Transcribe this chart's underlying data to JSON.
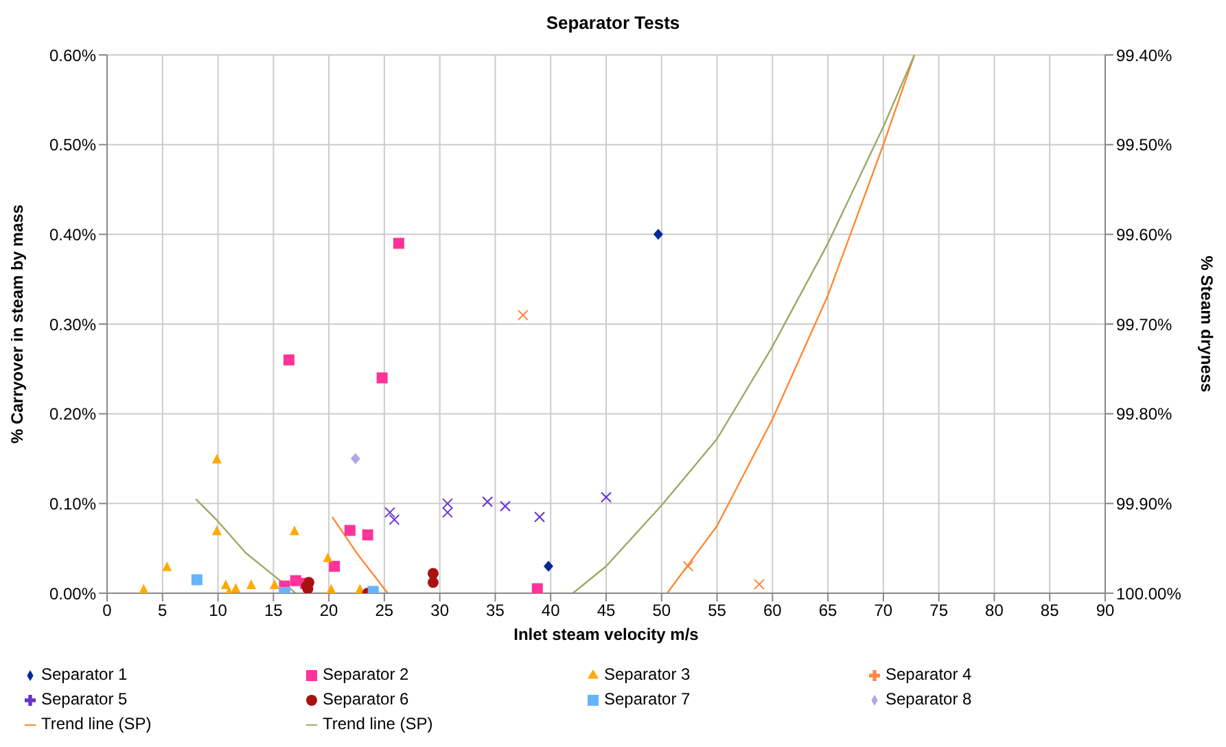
{
  "chart_data": {
    "type": "scatter",
    "title": "Separator Tests",
    "xlabel": "Inlet steam velocity m/s",
    "ylabel": "% Carryover in steam by mass",
    "y2label": "% Steam dryness",
    "xlim": [
      0,
      90
    ],
    "xticks": [
      0,
      5,
      10,
      15,
      20,
      25,
      30,
      35,
      40,
      45,
      50,
      55,
      60,
      65,
      70,
      75,
      80,
      85,
      90
    ],
    "ylim": [
      0,
      0.6
    ],
    "yticks": [
      {
        "value": 0,
        "label": "0.00%"
      },
      {
        "value": 0.1,
        "label": "0.10%"
      },
      {
        "value": 0.2,
        "label": "0.20%"
      },
      {
        "value": 0.3,
        "label": "0.30%"
      },
      {
        "value": 0.4,
        "label": "0.40%"
      },
      {
        "value": 0.5,
        "label": "0.50%"
      },
      {
        "value": 0.6,
        "label": "0.60%"
      }
    ],
    "y2lim": [
      100,
      99.4
    ],
    "y2ticks": [
      {
        "value": 100,
        "label": "100.00%"
      },
      {
        "value": 99.9,
        "label": "99.90%"
      },
      {
        "value": 99.8,
        "label": "99.80%"
      },
      {
        "value": 99.7,
        "label": "99.70%"
      },
      {
        "value": 99.6,
        "label": "99.60%"
      },
      {
        "value": 99.5,
        "label": "99.50%"
      },
      {
        "value": 99.4,
        "label": "99.40%"
      }
    ],
    "grid": true,
    "legend": "bottom",
    "series": [
      {
        "name": "Separator 1",
        "color": "#00289c",
        "marker": "diamond",
        "x": [
          49.7,
          39.8
        ],
        "values": [
          0.4,
          0.03
        ]
      },
      {
        "name": "Separator 2",
        "color": "#ff3399",
        "marker": "square",
        "x": [
          16.4,
          26.3,
          24.8,
          21.9,
          23.5,
          20.5,
          17,
          16,
          17.9,
          38.8
        ],
        "values": [
          0.26,
          0.39,
          0.24,
          0.07,
          0.065,
          0.03,
          0.014,
          0.008,
          0.011,
          0.005
        ]
      },
      {
        "name": "Separator 3",
        "color": "#ffaa00",
        "marker": "triangle",
        "x": [
          3.3,
          5.4,
          9.9,
          9.9,
          10.7,
          11,
          11.6,
          13,
          15.1,
          16.9,
          19.9,
          20.2,
          22.8
        ],
        "values": [
          0.005,
          0.03,
          0.15,
          0.07,
          0.01,
          0.002,
          0.006,
          0.01,
          0.01,
          0.07,
          0.04,
          0.005,
          0.005
        ]
      },
      {
        "name": "Separator 4",
        "color": "#ff8844",
        "marker": "cross",
        "x": [
          37.5,
          52.4,
          58.8
        ],
        "values": [
          0.31,
          0.03,
          0.01
        ]
      },
      {
        "name": "Separator 5",
        "color": "#6633cc",
        "marker": "cross",
        "x": [
          25.5,
          25.9,
          30.7,
          30.7,
          34.3,
          35.9,
          39,
          45
        ],
        "values": [
          0.09,
          0.082,
          0.1,
          0.09,
          0.102,
          0.097,
          0.085,
          0.107
        ]
      },
      {
        "name": "Separator 6",
        "color": "#aa1111",
        "marker": "circle",
        "x": [
          18.1,
          18.2,
          18,
          29.4,
          29.4,
          23.5
        ],
        "values": [
          0.005,
          0.012,
          0.008,
          0.022,
          0.012,
          0
        ]
      },
      {
        "name": "Separator 7",
        "color": "#66b3ff",
        "marker": "square",
        "x": [
          8.1,
          16,
          24
        ],
        "values": [
          0.015,
          0.001,
          0.002
        ]
      },
      {
        "name": "Separator 8",
        "color": "#b0a8e0",
        "marker": "diamond",
        "x": [
          22.4
        ],
        "values": [
          0.15
        ]
      },
      {
        "name": "Trend line (SP)",
        "type": "line",
        "color": "#ff8833",
        "marker": "none",
        "x": [
          20.3,
          22.5,
          25.3,
          38,
          50.5,
          55,
          60,
          65,
          70,
          72.8
        ],
        "values": [
          0.085,
          0.045,
          0,
          null,
          0,
          0.075,
          0.194,
          0.332,
          0.5,
          0.6
        ]
      },
      {
        "name": "Trend line (SP)",
        "type": "line",
        "color": "#99aa66",
        "marker": "none",
        "x": [
          8,
          10,
          12.5,
          15,
          17,
          30,
          42,
          45,
          50,
          55,
          60,
          65,
          70,
          72.8
        ],
        "values": [
          0.105,
          0.08,
          0.045,
          0.02,
          0,
          null,
          0,
          0.03,
          0.098,
          0.172,
          0.275,
          0.39,
          0.52,
          0.6
        ]
      }
    ]
  }
}
